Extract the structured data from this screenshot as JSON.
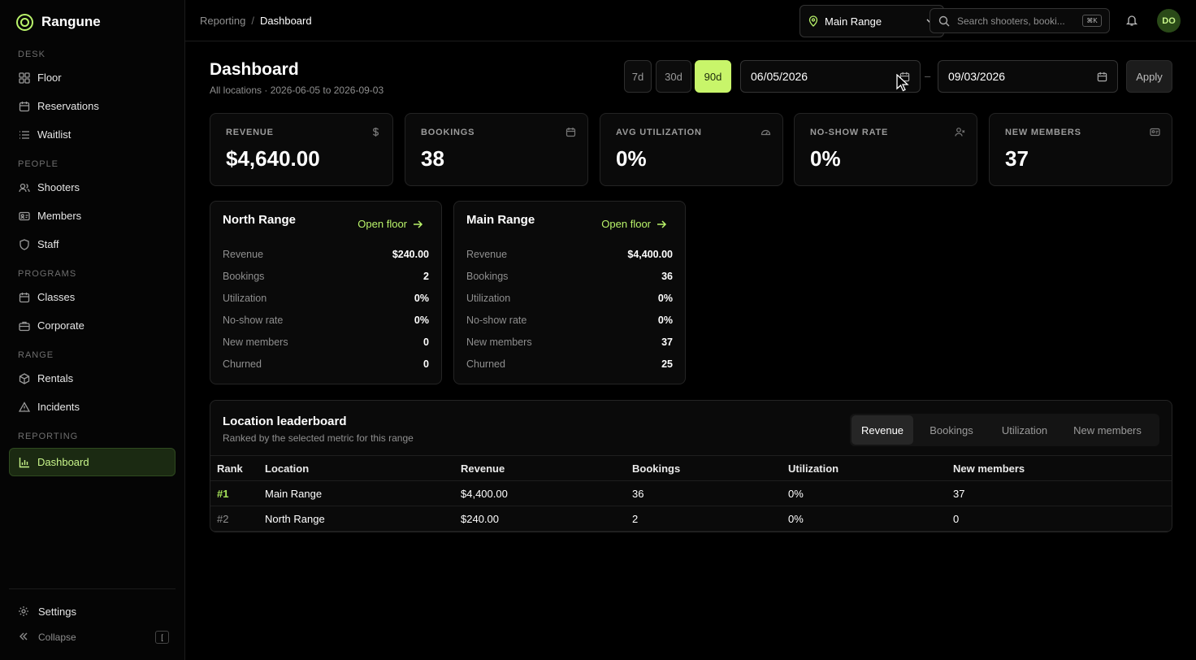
{
  "brand": {
    "name": "Rangune"
  },
  "sidebar": {
    "sections": {
      "desk": "DESK",
      "people": "PEOPLE",
      "programs": "PROGRAMS",
      "range": "RANGE",
      "reporting": "REPORTING"
    },
    "items": {
      "floor": "Floor",
      "reservations": "Reservations",
      "waitlist": "Waitlist",
      "shooters": "Shooters",
      "members": "Members",
      "staff": "Staff",
      "classes": "Classes",
      "corporate": "Corporate",
      "rentals": "Rentals",
      "incidents": "Incidents",
      "dashboard": "Dashboard"
    },
    "settings": "Settings",
    "collapse": "Collapse",
    "collapse_kbd": "["
  },
  "topbar": {
    "crumb_parent": "Reporting",
    "crumb_sep": "/",
    "crumb_current": "Dashboard",
    "location": "Main Range",
    "search_placeholder": "Search shooters, booki...",
    "search_kbd": "⌘K",
    "avatar": "DO"
  },
  "header": {
    "title": "Dashboard",
    "subtitle": "All locations · 2026-06-05 to 2026-09-03",
    "ranges": [
      "7d",
      "30d",
      "90d"
    ],
    "active_range": "90d",
    "date_from": "06/05/2026",
    "date_dash": "–",
    "date_to": "09/03/2026",
    "apply": "Apply"
  },
  "kpis": [
    {
      "label": "REVENUE",
      "value": "$4,640.00",
      "icon": "dollar-icon"
    },
    {
      "label": "BOOKINGS",
      "value": "38",
      "icon": "calendar-icon"
    },
    {
      "label": "AVG UTILIZATION",
      "value": "0%",
      "icon": "gauge-icon"
    },
    {
      "label": "NO-SHOW RATE",
      "value": "0%",
      "icon": "user-x-icon"
    },
    {
      "label": "NEW MEMBERS",
      "value": "37",
      "icon": "id-card-icon"
    }
  ],
  "locations": [
    {
      "name": "North Range",
      "open": "Open floor",
      "metrics": [
        {
          "label": "Revenue",
          "value": "$240.00"
        },
        {
          "label": "Bookings",
          "value": "2"
        },
        {
          "label": "Utilization",
          "value": "0%"
        },
        {
          "label": "No-show rate",
          "value": "0%"
        },
        {
          "label": "New members",
          "value": "0"
        },
        {
          "label": "Churned",
          "value": "0"
        }
      ]
    },
    {
      "name": "Main Range",
      "open": "Open floor",
      "metrics": [
        {
          "label": "Revenue",
          "value": "$4,400.00"
        },
        {
          "label": "Bookings",
          "value": "36"
        },
        {
          "label": "Utilization",
          "value": "0%"
        },
        {
          "label": "No-show rate",
          "value": "0%"
        },
        {
          "label": "New members",
          "value": "37"
        },
        {
          "label": "Churned",
          "value": "25"
        }
      ]
    }
  ],
  "leaderboard": {
    "title": "Location leaderboard",
    "subtitle": "Ranked by the selected metric for this range",
    "tabs": [
      "Revenue",
      "Bookings",
      "Utilization",
      "New members"
    ],
    "active_tab": "Revenue",
    "columns": [
      "Rank",
      "Location",
      "Revenue",
      "Bookings",
      "Utilization",
      "New members"
    ],
    "rows": [
      [
        "#1",
        "Main Range",
        "$4,400.00",
        "36",
        "0%",
        "37"
      ],
      [
        "#2",
        "North Range",
        "$240.00",
        "2",
        "0%",
        "0"
      ]
    ]
  },
  "colors": {
    "accent": "#c8f56a",
    "bg": "#000000",
    "card": "#0a0a0a"
  }
}
